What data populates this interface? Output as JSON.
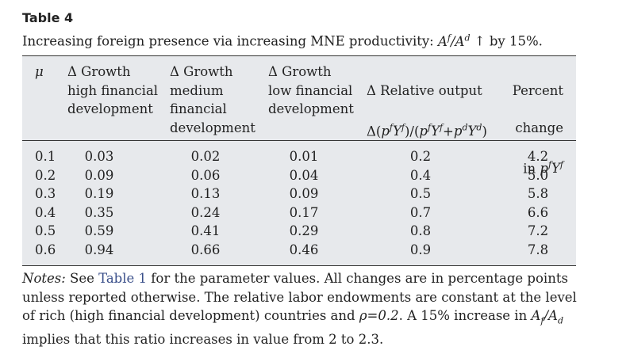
{
  "table": {
    "label": "Table 4",
    "caption_text": "Increasing foreign presence via increasing MNE productivity: ",
    "caption_math": {
      "a": "A",
      "f": "f",
      "slash": "/",
      "d": "d"
    },
    "caption_tail": " ↑ by 15%.",
    "columns": [
      {
        "key": "mu",
        "label": "μ"
      },
      {
        "key": "g_high",
        "label": "Δ Growth\nhigh financial\ndevelopment"
      },
      {
        "key": "g_medium",
        "label": "Δ Growth\nmedium\nfinancial\ndevelopment"
      },
      {
        "key": "g_low",
        "label": "Δ Growth\nlow financial\ndevelopment"
      },
      {
        "key": "rel_output",
        "label_line1": "Δ Relative output",
        "label_line2_prefix": "Δ("
      },
      {
        "key": "pct_change",
        "label_line1": "Percent",
        "label_line2": "change",
        "label_line3_prefix": "in "
      }
    ],
    "rows": [
      {
        "mu": "0.1",
        "g_high": "0.03",
        "g_medium": "0.02",
        "g_low": "0.01",
        "rel_output": "0.2",
        "pct_change": "4.2"
      },
      {
        "mu": "0.2",
        "g_high": "0.09",
        "g_medium": "0.06",
        "g_low": "0.04",
        "rel_output": "0.4",
        "pct_change": "5.0"
      },
      {
        "mu": "0.3",
        "g_high": "0.19",
        "g_medium": "0.13",
        "g_low": "0.09",
        "rel_output": "0.5",
        "pct_change": "5.8"
      },
      {
        "mu": "0.4",
        "g_high": "0.35",
        "g_medium": "0.24",
        "g_low": "0.17",
        "rel_output": "0.7",
        "pct_change": "6.6"
      },
      {
        "mu": "0.5",
        "g_high": "0.59",
        "g_medium": "0.41",
        "g_low": "0.29",
        "rel_output": "0.8",
        "pct_change": "7.2"
      },
      {
        "mu": "0.6",
        "g_high": "0.94",
        "g_medium": "0.66",
        "g_low": "0.46",
        "rel_output": "0.9",
        "pct_change": "7.8"
      }
    ]
  },
  "notes": {
    "label": "Notes:",
    "part1": " See ",
    "link_text": "Table 1",
    "part2": " for the parameter values. All changes are in percentage points unless reported otherwise. The relative labor endowments are constant at the level of rich (high financial development) countries and ",
    "rho_expr": "ρ=0.2",
    "part3": ". A 15% increase in ",
    "ratio_a": "A",
    "ratio_f": "f",
    "ratio_slash": "/",
    "ratio_d": "d",
    "part4": " implies that this ratio increases in value from 2 to 2.3."
  }
}
